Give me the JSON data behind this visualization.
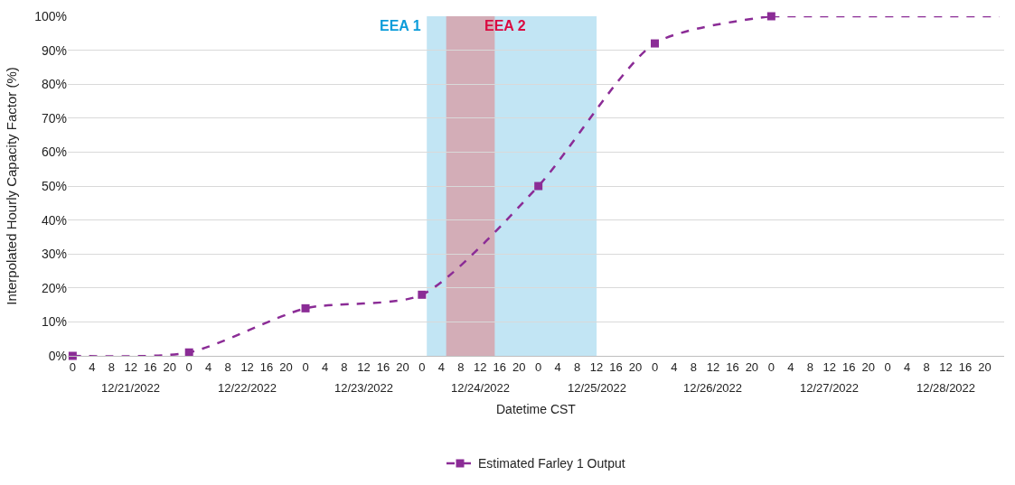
{
  "chart_data": {
    "type": "line",
    "xlabel": "Datetime CST",
    "ylabel": "Interpolated Hourly Capacity Factor (%)",
    "xlim": [
      "2022-12-20T23:00",
      "2022-12-29T00:00"
    ],
    "xticks": [
      {
        "value": "2022-12-21T00:00",
        "label": "0"
      },
      {
        "value": "2022-12-21T04:00",
        "label": "4"
      },
      {
        "value": "2022-12-21T08:00",
        "label": "8"
      },
      {
        "value": "2022-12-21T12:00",
        "label": "12"
      },
      {
        "value": "2022-12-21T16:00",
        "label": "16"
      },
      {
        "value": "2022-12-21T20:00",
        "label": "20"
      },
      {
        "value": "2022-12-22T00:00",
        "label": "0"
      },
      {
        "value": "2022-12-22T04:00",
        "label": "4"
      },
      {
        "value": "2022-12-22T08:00",
        "label": "8"
      },
      {
        "value": "2022-12-22T12:00",
        "label": "12"
      },
      {
        "value": "2022-12-22T16:00",
        "label": "16"
      },
      {
        "value": "2022-12-22T20:00",
        "label": "20"
      },
      {
        "value": "2022-12-23T00:00",
        "label": "0"
      },
      {
        "value": "2022-12-23T04:00",
        "label": "4"
      },
      {
        "value": "2022-12-23T08:00",
        "label": "8"
      },
      {
        "value": "2022-12-23T12:00",
        "label": "12"
      },
      {
        "value": "2022-12-23T16:00",
        "label": "16"
      },
      {
        "value": "2022-12-23T20:00",
        "label": "20"
      },
      {
        "value": "2022-12-24T00:00",
        "label": "0"
      },
      {
        "value": "2022-12-24T04:00",
        "label": "4"
      },
      {
        "value": "2022-12-24T08:00",
        "label": "8"
      },
      {
        "value": "2022-12-24T12:00",
        "label": "12"
      },
      {
        "value": "2022-12-24T16:00",
        "label": "16"
      },
      {
        "value": "2022-12-24T20:00",
        "label": "20"
      },
      {
        "value": "2022-12-25T00:00",
        "label": "0"
      },
      {
        "value": "2022-12-25T04:00",
        "label": "4"
      },
      {
        "value": "2022-12-25T08:00",
        "label": "8"
      },
      {
        "value": "2022-12-25T12:00",
        "label": "12"
      },
      {
        "value": "2022-12-25T16:00",
        "label": "16"
      },
      {
        "value": "2022-12-25T20:00",
        "label": "20"
      },
      {
        "value": "2022-12-26T00:00",
        "label": "0"
      },
      {
        "value": "2022-12-26T04:00",
        "label": "4"
      },
      {
        "value": "2022-12-26T08:00",
        "label": "8"
      },
      {
        "value": "2022-12-26T12:00",
        "label": "12"
      },
      {
        "value": "2022-12-26T16:00",
        "label": "16"
      },
      {
        "value": "2022-12-26T20:00",
        "label": "20"
      },
      {
        "value": "2022-12-27T00:00",
        "label": "0"
      },
      {
        "value": "2022-12-27T04:00",
        "label": "4"
      },
      {
        "value": "2022-12-27T08:00",
        "label": "8"
      },
      {
        "value": "2022-12-27T12:00",
        "label": "12"
      },
      {
        "value": "2022-12-27T16:00",
        "label": "16"
      },
      {
        "value": "2022-12-27T20:00",
        "label": "20"
      },
      {
        "value": "2022-12-28T00:00",
        "label": "0"
      },
      {
        "value": "2022-12-28T04:00",
        "label": "4"
      },
      {
        "value": "2022-12-28T08:00",
        "label": "8"
      },
      {
        "value": "2022-12-28T12:00",
        "label": "12"
      },
      {
        "value": "2022-12-28T16:00",
        "label": "16"
      },
      {
        "value": "2022-12-28T20:00",
        "label": "20"
      }
    ],
    "x2lim": [
      "2022-12-20T23:00",
      "2022-12-29T00:00"
    ],
    "x2ticks": [
      {
        "value": "2022-12-21T12:00",
        "label": "12/21/2022"
      },
      {
        "value": "2022-12-22T12:00",
        "label": "12/22/2022"
      },
      {
        "value": "2022-12-23T12:00",
        "label": "12/23/2022"
      },
      {
        "value": "2022-12-24T12:00",
        "label": "12/24/2022"
      },
      {
        "value": "2022-12-25T12:00",
        "label": "12/25/2022"
      },
      {
        "value": "2022-12-26T12:00",
        "label": "12/26/2022"
      },
      {
        "value": "2022-12-27T12:00",
        "label": "12/27/2022"
      },
      {
        "value": "2022-12-28T12:00",
        "label": "12/28/2022"
      }
    ],
    "ylim": [
      0,
      100
    ],
    "yticks": [
      {
        "value": 0,
        "label": "0%"
      },
      {
        "value": 10,
        "label": "10%"
      },
      {
        "value": 20,
        "label": "20%"
      },
      {
        "value": 30,
        "label": "30%"
      },
      {
        "value": 40,
        "label": "40%"
      },
      {
        "value": 50,
        "label": "50%"
      },
      {
        "value": 60,
        "label": "60%"
      },
      {
        "value": 70,
        "label": "70%"
      },
      {
        "value": 80,
        "label": "80%"
      },
      {
        "value": 90,
        "label": "90%"
      },
      {
        "value": 100,
        "label": "100%"
      }
    ],
    "grid": "y",
    "legend": "bottom",
    "line_style": "dashed",
    "bands": [
      {
        "axis": "x",
        "from": "2022-12-24T01:00",
        "to": "2022-12-25T12:00",
        "label": "EEA 1",
        "color": "#c2e5f4"
      },
      {
        "axis": "x",
        "from": "2022-12-24T05:00",
        "to": "2022-12-24T15:00",
        "label": "EEA 2",
        "color": "#d3adb7"
      }
    ],
    "series": [
      {
        "name": "Estimated Farley 1 Output",
        "color": "#8b2c96",
        "marker": "square",
        "x": [
          "2022-12-21T00:00",
          "2022-12-22T00:00",
          "2022-12-23T00:00",
          "2022-12-24T00:00",
          "2022-12-25T00:00",
          "2022-12-26T00:00",
          "2022-12-27T00:00"
        ],
        "values": [
          0,
          1,
          14,
          18,
          50,
          92,
          100
        ]
      },
      {
        "color": "#8b2c96",
        "marker": "none",
        "x": [
          "2022-12-27T00:00",
          "2022-12-28T23:00"
        ],
        "values": [
          100,
          100
        ]
      }
    ]
  }
}
